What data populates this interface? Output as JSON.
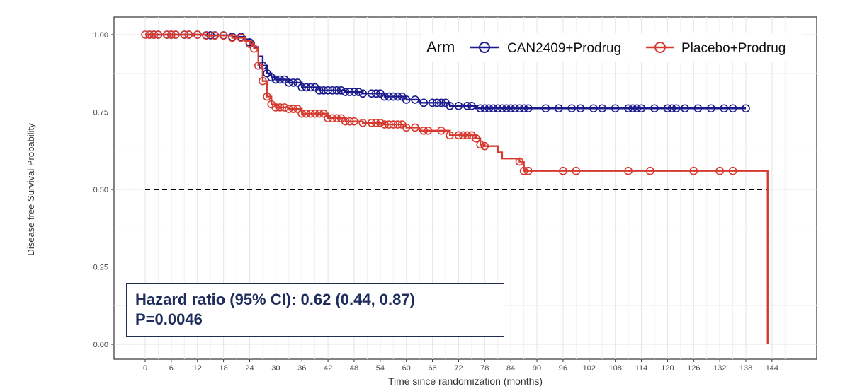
{
  "chart_data": {
    "type": "line",
    "subtype": "kaplan-meier",
    "title": "",
    "xlabel": "Time since randomization (months)",
    "ylabel": "Disease free Survival Probability",
    "xlim": [
      -3,
      150
    ],
    "ylim": [
      0,
      1.05
    ],
    "xticks": [
      0,
      6,
      12,
      18,
      24,
      30,
      36,
      42,
      48,
      54,
      60,
      66,
      72,
      78,
      84,
      90,
      96,
      102,
      108,
      114,
      120,
      126,
      132,
      138,
      144
    ],
    "yticks": [
      0.0,
      0.25,
      0.5,
      0.75,
      1.0
    ],
    "ytick_labels": [
      "0.00",
      "0.25",
      "0.50",
      "0.75",
      "1.00"
    ],
    "grid": true,
    "legend": {
      "title": "Arm",
      "placement": "top-right"
    },
    "median_line": {
      "y": 0.5,
      "x_end": 143,
      "style": "dashed",
      "color": "#000000"
    },
    "series": [
      {
        "name": "CAN2409+Prodrug",
        "color": "#1a1a8c",
        "steps": [
          [
            0,
            1.0
          ],
          [
            14,
            0.998
          ],
          [
            20,
            0.993
          ],
          [
            23,
            0.985
          ],
          [
            24,
            0.975
          ],
          [
            25,
            0.96
          ],
          [
            26,
            0.93
          ],
          [
            27,
            0.9
          ],
          [
            28,
            0.875
          ],
          [
            29,
            0.862
          ],
          [
            30,
            0.855
          ],
          [
            33,
            0.845
          ],
          [
            36,
            0.83
          ],
          [
            40,
            0.82
          ],
          [
            46,
            0.815
          ],
          [
            50,
            0.81
          ],
          [
            55,
            0.8
          ],
          [
            60,
            0.79
          ],
          [
            63,
            0.78
          ],
          [
            70,
            0.77
          ],
          [
            76,
            0.762
          ],
          [
            138,
            0.762
          ]
        ],
        "censor_times": [
          1,
          2,
          3,
          5,
          6,
          7,
          9,
          10,
          12,
          14,
          15,
          16,
          18,
          20,
          22,
          24,
          27,
          28,
          29,
          30,
          31,
          32,
          33,
          34,
          35,
          36,
          37,
          38,
          39,
          40,
          41,
          42,
          43,
          44,
          45,
          46,
          47,
          48,
          49,
          50,
          52,
          53,
          54,
          55,
          56,
          57,
          58,
          59,
          60,
          62,
          64,
          66,
          67,
          68,
          69,
          70,
          72,
          74,
          75,
          77,
          78,
          79,
          80,
          81,
          82,
          83,
          84,
          85,
          86,
          87,
          88,
          92,
          95,
          98,
          100,
          103,
          105,
          108,
          111,
          112,
          113,
          114,
          117,
          120,
          121,
          122,
          124,
          127,
          130,
          133,
          135,
          138
        ]
      },
      {
        "name": "Placebo+Prodrug",
        "color": "#d63a2f",
        "steps": [
          [
            0,
            1.0
          ],
          [
            14,
            0.997
          ],
          [
            20,
            0.99
          ],
          [
            23,
            0.98
          ],
          [
            24,
            0.97
          ],
          [
            25,
            0.955
          ],
          [
            26,
            0.9
          ],
          [
            27,
            0.85
          ],
          [
            28,
            0.8
          ],
          [
            29,
            0.775
          ],
          [
            30,
            0.765
          ],
          [
            33,
            0.76
          ],
          [
            36,
            0.745
          ],
          [
            42,
            0.73
          ],
          [
            46,
            0.72
          ],
          [
            50,
            0.715
          ],
          [
            55,
            0.71
          ],
          [
            60,
            0.7
          ],
          [
            63,
            0.69
          ],
          [
            70,
            0.675
          ],
          [
            76,
            0.665
          ],
          [
            77,
            0.645
          ],
          [
            78,
            0.64
          ],
          [
            81,
            0.62
          ],
          [
            82,
            0.6
          ],
          [
            86,
            0.59
          ],
          [
            87,
            0.56
          ],
          [
            143,
            0.56
          ],
          [
            143,
            0.0
          ]
        ],
        "censor_times": [
          0,
          1,
          2,
          3,
          5,
          6,
          7,
          9,
          10,
          12,
          14,
          16,
          18,
          20,
          22,
          24,
          25,
          26,
          27,
          28,
          29,
          30,
          31,
          32,
          33,
          34,
          35,
          36,
          37,
          38,
          39,
          40,
          41,
          42,
          43,
          44,
          45,
          46,
          47,
          48,
          50,
          52,
          53,
          54,
          55,
          56,
          57,
          58,
          59,
          60,
          62,
          64,
          65,
          68,
          70,
          72,
          73,
          74,
          75,
          76,
          77,
          78,
          86,
          87,
          88,
          96,
          99,
          111,
          116,
          126,
          132,
          135
        ]
      }
    ]
  },
  "annotation": {
    "line1": "Hazard ratio (95% CI): 0.62 (0.44, 0.87)",
    "line2": "P=0.0046"
  }
}
